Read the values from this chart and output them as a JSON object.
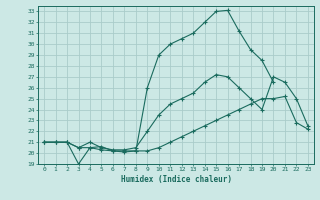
{
  "title": "",
  "xlabel": "Humidex (Indice chaleur)",
  "background_color": "#cce8e5",
  "grid_color": "#aaccca",
  "line_color": "#1a6b5e",
  "xlim": [
    -0.5,
    23.5
  ],
  "ylim": [
    19,
    33.5
  ],
  "x_ticks": [
    0,
    1,
    2,
    3,
    4,
    5,
    6,
    7,
    8,
    9,
    10,
    11,
    12,
    13,
    14,
    15,
    16,
    17,
    18,
    19,
    20,
    21,
    22,
    23
  ],
  "yticks": [
    19,
    20,
    21,
    22,
    23,
    24,
    25,
    26,
    27,
    28,
    29,
    30,
    31,
    32,
    33
  ],
  "series1_x": [
    0,
    1,
    2,
    3,
    4,
    5,
    6,
    7,
    8,
    9,
    10,
    11,
    12,
    13,
    14,
    15,
    16,
    17,
    18,
    19,
    20
  ],
  "series1_y": [
    21.0,
    21.0,
    21.0,
    19.0,
    20.5,
    20.6,
    20.2,
    20.1,
    20.2,
    26.0,
    29.0,
    30.0,
    30.5,
    31.0,
    32.0,
    33.0,
    33.1,
    31.2,
    29.5,
    28.5,
    26.5
  ],
  "series2_x": [
    0,
    1,
    2,
    3,
    4,
    5,
    6,
    7,
    8,
    9,
    10,
    11,
    12,
    13,
    14,
    15,
    16,
    17,
    18,
    19,
    20,
    21,
    22,
    23
  ],
  "series2_y": [
    21.0,
    21.0,
    21.0,
    20.5,
    21.0,
    20.5,
    20.3,
    20.3,
    20.5,
    22.0,
    23.5,
    24.5,
    25.0,
    25.5,
    26.5,
    27.2,
    27.0,
    26.0,
    25.0,
    24.0,
    27.0,
    26.5,
    25.0,
    22.5
  ],
  "series3_x": [
    0,
    1,
    2,
    3,
    4,
    5,
    6,
    7,
    8,
    9,
    10,
    11,
    12,
    13,
    14,
    15,
    16,
    17,
    18,
    19,
    20,
    21,
    22,
    23
  ],
  "series3_y": [
    21.0,
    21.0,
    21.0,
    20.5,
    20.5,
    20.3,
    20.2,
    20.2,
    20.2,
    20.2,
    20.5,
    21.0,
    21.5,
    22.0,
    22.5,
    23.0,
    23.5,
    24.0,
    24.5,
    25.0,
    25.0,
    25.2,
    22.8,
    22.2
  ]
}
